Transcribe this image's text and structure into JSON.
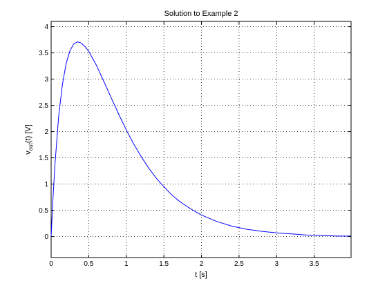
{
  "chart_data": {
    "type": "line",
    "title": "Solution to Example 2",
    "xlabel": "t [s]",
    "ylabel": {
      "base": "v",
      "subscript": "out",
      "suffix": "(t) [V]"
    },
    "xlim": [
      0,
      3.99
    ],
    "ylim": [
      -0.4,
      4.1
    ],
    "xticks": [
      0,
      0.5,
      1,
      1.5,
      2,
      2.5,
      3,
      3.5
    ],
    "xtick_labels": [
      "0",
      "0.5",
      "1",
      "1.5",
      "2",
      "2.5",
      "3",
      "3.5"
    ],
    "yticks": [
      0,
      0.5,
      1,
      1.5,
      2,
      2.5,
      3,
      3.5,
      4
    ],
    "ytick_labels": [
      "0",
      "0.5",
      "1",
      "1.5",
      "2",
      "2.5",
      "3",
      "3.5",
      "4"
    ],
    "grid": true,
    "series": [
      {
        "color": "#0000ff",
        "x": [
          0,
          0.02,
          0.05,
          0.1,
          0.15,
          0.2,
          0.25,
          0.3,
          0.35,
          0.4,
          0.45,
          0.5,
          0.6,
          0.7,
          0.8,
          0.9,
          1.0,
          1.1,
          1.2,
          1.3,
          1.4,
          1.5,
          1.6,
          1.7,
          1.8,
          1.9,
          2.0,
          2.2,
          2.4,
          2.6,
          2.8,
          3.0,
          3.2,
          3.4,
          3.6,
          3.8,
          3.99
        ],
        "y": [
          0,
          0.61,
          1.36,
          2.29,
          2.9,
          3.3,
          3.54,
          3.67,
          3.71,
          3.69,
          3.62,
          3.53,
          3.27,
          2.96,
          2.64,
          2.33,
          2.03,
          1.76,
          1.52,
          1.3,
          1.11,
          0.95,
          0.8,
          0.68,
          0.58,
          0.49,
          0.41,
          0.29,
          0.2,
          0.14,
          0.1,
          0.07,
          0.05,
          0.03,
          0.02,
          0.01,
          0.01
        ]
      }
    ]
  }
}
